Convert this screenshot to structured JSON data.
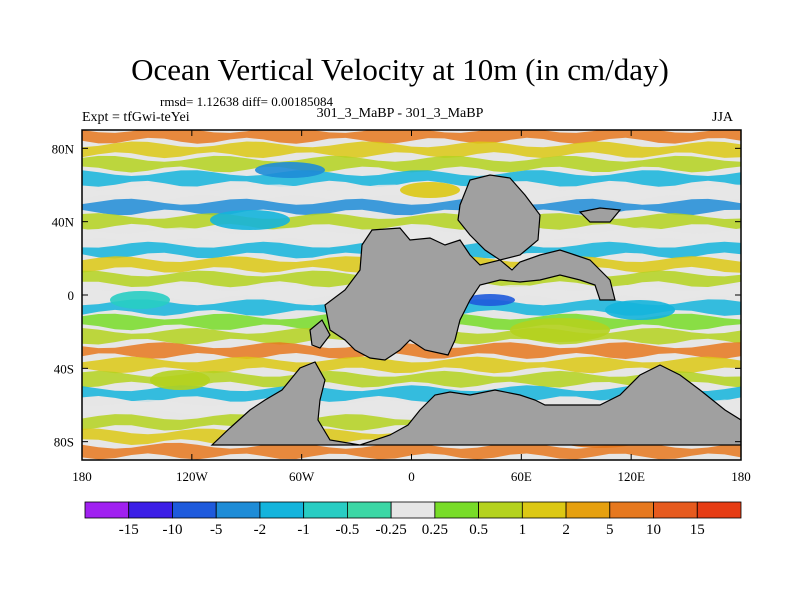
{
  "chart_data": {
    "type": "heatmap",
    "title": "Ocean Vertical Velocity at 10m (in cm/day)",
    "stats": "rmsd= 1.12638 diff= 0.00185084",
    "left_label": "Expt = tfGwi-teYei",
    "center_label": "301_3_MaBP - 301_3_MaBP",
    "right_label": "JJA",
    "x_ticks": [
      {
        "value": -180,
        "label": "180"
      },
      {
        "value": -120,
        "label": "120W"
      },
      {
        "value": -60,
        "label": "60W"
      },
      {
        "value": 0,
        "label": "0"
      },
      {
        "value": 60,
        "label": "60E"
      },
      {
        "value": 120,
        "label": "120E"
      },
      {
        "value": 180,
        "label": "180"
      }
    ],
    "y_ticks": [
      {
        "value": 80,
        "label": "80N"
      },
      {
        "value": 40,
        "label": "40N"
      },
      {
        "value": 0,
        "label": "0"
      },
      {
        "value": -40,
        "label": "40S"
      },
      {
        "value": -80,
        "label": "80S"
      }
    ],
    "xlim": [
      -180,
      180
    ],
    "ylim": [
      -90,
      90
    ],
    "colorbar": {
      "units": "cm/day",
      "labels": [
        "-15",
        "-10",
        "-5",
        "-2",
        "-1",
        "-0.5",
        "-0.25",
        "0.25",
        "0.5",
        "1",
        "2",
        "5",
        "10",
        "15"
      ],
      "colors": [
        "#a020f0",
        "#3c1ee6",
        "#1e5adc",
        "#1e8cd7",
        "#14b4dc",
        "#28cdc3",
        "#3cd7a5",
        "#e6e6e6",
        "#78dc28",
        "#b4d21e",
        "#dcc814",
        "#e6a00f",
        "#e6781e",
        "#e65a1e",
        "#e63c14"
      ]
    }
  }
}
